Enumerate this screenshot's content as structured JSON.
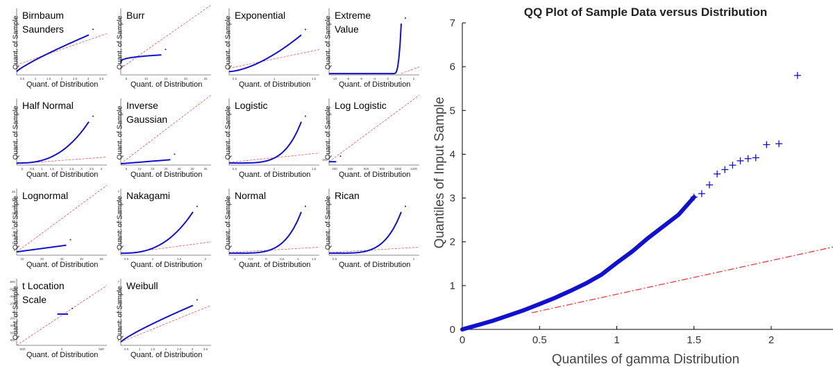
{
  "colors": {
    "points": "#1010d0",
    "reference": "#e83a3a",
    "axis": "#000000"
  },
  "panel_xlabel": "Quant. of Distribution",
  "panel_ylabel": "Quant. of Sample",
  "main": {
    "title": "QQ Plot of Sample Data versus Distribution",
    "xlabel": "Quantiles of gamma Distribution",
    "ylabel": "Quantiles of Input Sample"
  },
  "chart_data": [
    {
      "type": "scatter",
      "title": "Birnbaum\nSaunders",
      "xticks": [
        "0.5",
        "1",
        "1.5",
        "2",
        "2.5",
        "3",
        "3.5"
      ],
      "yticks": []
    },
    {
      "type": "scatter",
      "title": "Burr",
      "xticks": [
        "5",
        "10",
        "15",
        "20",
        "25"
      ],
      "yticks": []
    },
    {
      "type": "scatter",
      "title": "Exponential",
      "xticks": [
        "0.5",
        "1",
        "1.5"
      ],
      "yticks": []
    },
    {
      "type": "scatter",
      "title": "Extreme\nValue",
      "xticks": [
        "-10",
        "-8",
        "-6",
        "-4",
        "-2",
        "0",
        "2"
      ],
      "yticks": []
    },
    {
      "type": "scatter",
      "title": "Half Normal",
      "xticks": [
        "0",
        "0.5",
        "1",
        "1.5",
        "2",
        "2.5",
        "3",
        "3.5",
        "4"
      ],
      "yticks": []
    },
    {
      "type": "scatter",
      "title": "Inverse\nGaussian",
      "xticks": [
        "5",
        "10",
        "15",
        "20",
        "25",
        "30",
        "35"
      ],
      "yticks": []
    },
    {
      "type": "scatter",
      "title": "Logistic",
      "xticks": [
        "0.5",
        "1",
        "1.5"
      ],
      "yticks": []
    },
    {
      "type": "scatter",
      "title": "Log Logistic",
      "xticks": [
        "200",
        "400",
        "600",
        "800",
        "1000",
        "1200"
      ],
      "yticks": [
        "-200"
      ]
    },
    {
      "type": "scatter",
      "title": "Lognormal",
      "xticks": [
        "10",
        "20",
        "30",
        "40",
        "50"
      ],
      "yticks": [
        "5",
        "10",
        "15",
        "20",
        "25",
        "30",
        "35",
        "40",
        "45"
      ]
    },
    {
      "type": "scatter",
      "title": "Nakagami",
      "xticks": [
        "0.5",
        "1",
        "1.5",
        "2"
      ],
      "yticks": [
        "1",
        "2",
        "3",
        "4",
        "5",
        "6",
        "7"
      ]
    },
    {
      "type": "scatter",
      "title": "Normal",
      "xticks": [
        "-1",
        "-0.5",
        "0",
        "0.5",
        "1",
        "1.5"
      ],
      "yticks": []
    },
    {
      "type": "scatter",
      "title": "Rican",
      "xticks": [
        "0.5",
        "1"
      ],
      "yticks": []
    },
    {
      "type": "scatter",
      "title": "t Location\nScale",
      "xticks": [
        "-500",
        "0",
        "500"
      ],
      "yticks": [
        "800",
        "600",
        "400",
        "200",
        "0",
        "-200",
        "-400",
        "-600",
        "-800"
      ]
    },
    {
      "type": "scatter",
      "title": "Weibull",
      "xticks": [
        "0.5",
        "1",
        "1.5",
        "2",
        "2.5",
        "3",
        "3.5"
      ],
      "yticks": [
        "1",
        "2",
        "3",
        "4",
        "5",
        "6",
        "7"
      ]
    },
    {
      "type": "scatter",
      "title": "QQ Plot of Sample Data versus Distribution",
      "xlabel": "Quantiles of gamma Distribution",
      "ylabel": "Quantiles of Input Sample",
      "xlim": [
        0,
        2.4
      ],
      "ylim": [
        0,
        7
      ],
      "xticks": [
        0,
        0.5,
        1,
        1.5,
        2
      ],
      "yticks": [
        0,
        1,
        2,
        3,
        4,
        5,
        6,
        7
      ],
      "series": [
        {
          "marker": "+",
          "x": [
            0.0,
            0.1,
            0.2,
            0.3,
            0.4,
            0.5,
            0.6,
            0.7,
            0.8,
            0.9,
            1.0,
            1.1,
            1.2,
            1.3,
            1.4,
            1.5,
            1.55,
            1.6,
            1.65,
            1.7,
            1.75,
            1.8,
            1.85,
            1.9,
            1.97,
            2.05,
            2.17
          ],
          "y": [
            0.0,
            0.1,
            0.2,
            0.32,
            0.44,
            0.58,
            0.72,
            0.88,
            1.05,
            1.25,
            1.52,
            1.78,
            2.08,
            2.35,
            2.62,
            3.02,
            3.1,
            3.3,
            3.55,
            3.65,
            3.75,
            3.85,
            3.9,
            3.92,
            4.22,
            4.24,
            5.8
          ]
        },
        {
          "style": "dash-dot",
          "x": [
            0.45,
            2.4
          ],
          "y": [
            0.38,
            1.88
          ]
        }
      ]
    }
  ]
}
